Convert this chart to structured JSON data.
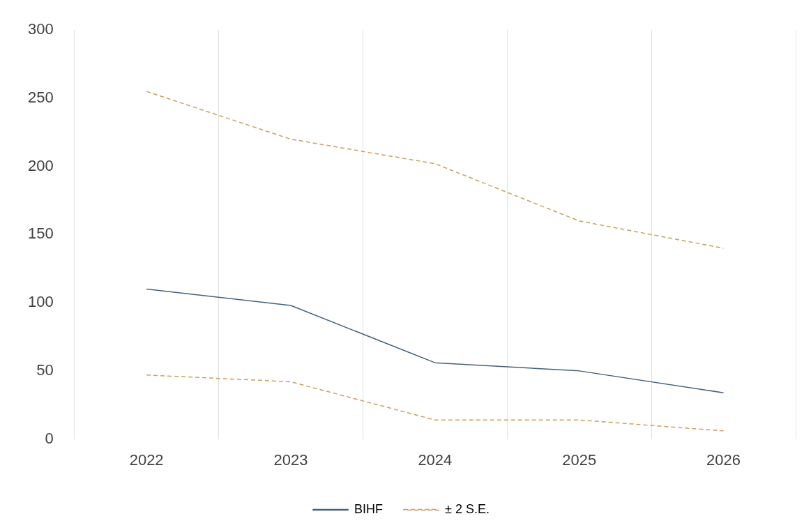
{
  "chart_data": {
    "type": "line",
    "categories": [
      "2022",
      "2023",
      "2024",
      "2025",
      "2026"
    ],
    "series": [
      {
        "name": "BIHF",
        "color": "#44617b",
        "line_style": "solid",
        "values": [
          110,
          98,
          56,
          50,
          34
        ]
      },
      {
        "name": "± 2 S.E.",
        "color": "#c8a060",
        "line_style": "dashed",
        "values": [
          255,
          220,
          202,
          160,
          140
        ]
      },
      {
        "color": "#c8a060",
        "line_style": "dashed",
        "values": [
          47,
          42,
          14,
          14,
          6
        ]
      }
    ],
    "ylim": [
      0,
      300
    ],
    "yticks": [
      0,
      50,
      100,
      150,
      200,
      250,
      300
    ],
    "grid": "x",
    "legend": "bottom",
    "marker": "none"
  }
}
